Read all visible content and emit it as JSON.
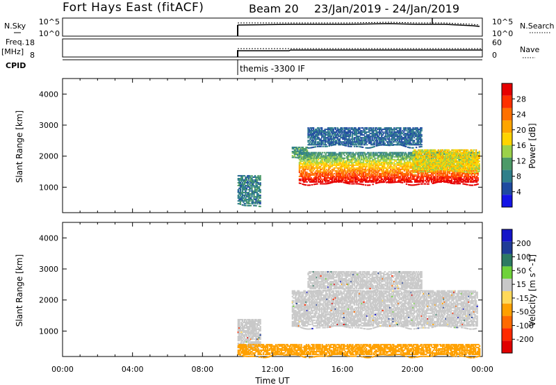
{
  "header": {
    "station": "Fort Hays East (fitACF)",
    "beam": "Beam 20",
    "dates": "23/Jan/2019 - 24/Jan/2019"
  },
  "top_panels": {
    "nsky_label": "N.Sky",
    "nsky_ticks": [
      "10^5",
      "10^0"
    ],
    "nsearch_label": "N.Search",
    "nsearch_ticks": [
      "10^5",
      "10^0"
    ],
    "freq_label_1": "Freq.",
    "freq_label_2": "[MHz]",
    "freq_ticks": [
      "18",
      "8"
    ],
    "nave_label": "Nave",
    "nave_ticks": [
      "60",
      "0"
    ],
    "cpid_label": "CPID",
    "cpid_value": "themis -3300 IF"
  },
  "colors": {
    "power_scale": [
      "#1414e6",
      "#1e4aa0",
      "#2f7f8a",
      "#4c9a68",
      "#9bd14a",
      "#ffd400",
      "#ffa500",
      "#ff7000",
      "#ff3000",
      "#e60000"
    ],
    "velocity_scale": [
      "#1414c8",
      "#1f3c96",
      "#2d7a62",
      "#6fd23a",
      "#c8c8c8",
      "#ffd95a",
      "#ffa000",
      "#ff6a00",
      "#ff2a00",
      "#e00000"
    ],
    "ground_scatter": "#c8c8c8"
  },
  "chart_data": [
    {
      "type": "heatmap",
      "name": "power",
      "title": "",
      "ylabel": "Slant Range [km]",
      "xlabel": "",
      "x_unit": "hours UT since 23/Jan/2019 00:00",
      "xlim": [
        0,
        24
      ],
      "ylim": [
        180,
        4500
      ],
      "yticks": [
        "1000",
        "2000",
        "3000",
        "4000"
      ],
      "colorbar": {
        "label": "Power [dB]",
        "ticks": [
          "4",
          "8",
          "12",
          "16",
          "20",
          "24",
          "28"
        ],
        "range": [
          0,
          30
        ]
      },
      "echo_regions": [
        {
          "t_start": 10.0,
          "t_end": 11.3,
          "r_low": 400,
          "r_high": 1350,
          "value": 8
        },
        {
          "t_start": 13.1,
          "t_end": 14.0,
          "r_low": 1900,
          "r_high": 2300,
          "value": 10
        },
        {
          "t_start": 13.5,
          "t_end": 23.7,
          "r_low": 1100,
          "r_high": 2100,
          "value": 22
        },
        {
          "t_start": 14.0,
          "t_end": 20.5,
          "r_low": 2300,
          "r_high": 2900,
          "value": 6
        },
        {
          "t_start": 20.0,
          "t_end": 23.8,
          "r_low": 1500,
          "r_high": 2200,
          "value": 16
        }
      ]
    },
    {
      "type": "heatmap",
      "name": "velocity",
      "title": "",
      "ylabel": "Slant Range [km]",
      "xlabel": "Time UT",
      "xlim": [
        0,
        24
      ],
      "ylim": [
        180,
        4500
      ],
      "xticks": [
        "00:00",
        "04:00",
        "08:00",
        "12:00",
        "16:00",
        "20:00",
        "00:00"
      ],
      "yticks": [
        "1000",
        "2000",
        "3000",
        "4000"
      ],
      "colorbar": {
        "label": "Velocity [m s^-1]",
        "ticks": [
          "200",
          "100",
          "50",
          "15",
          "-15",
          "-50",
          "-100",
          "-200"
        ]
      },
      "echo_regions": [
        {
          "t_start": 10.0,
          "t_end": 11.3,
          "r_low": 400,
          "r_high": 1350,
          "value": "ground scatter"
        },
        {
          "t_start": 13.1,
          "t_end": 23.7,
          "r_low": 1100,
          "r_high": 2300,
          "value": "ground scatter"
        },
        {
          "t_start": 14.0,
          "t_end": 20.5,
          "r_low": 2300,
          "r_high": 2900,
          "value": "ground scatter"
        },
        {
          "t_start": 10.0,
          "t_end": 23.8,
          "r_low": 180,
          "r_high": 550,
          "value": -60
        }
      ]
    }
  ]
}
